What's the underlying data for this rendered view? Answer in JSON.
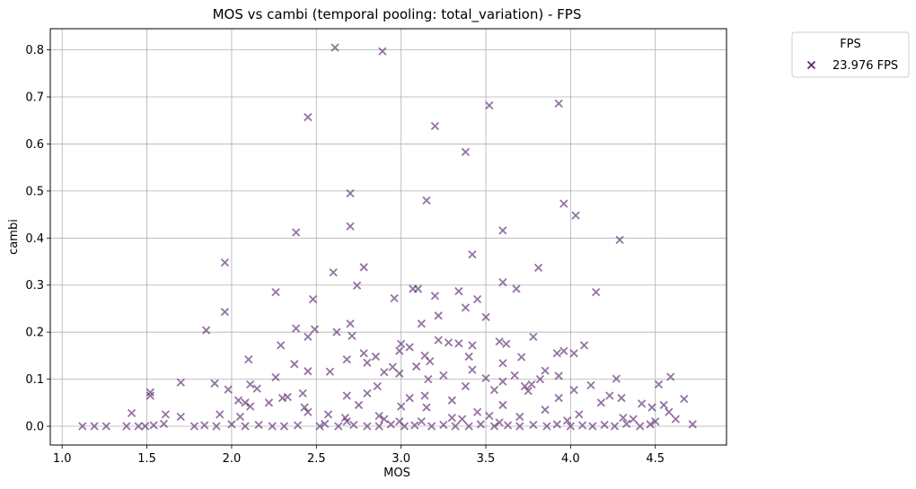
{
  "chart_data": {
    "type": "scatter",
    "title": "MOS vs cambi (temporal pooling: total_variation) - FPS",
    "xlabel": "MOS",
    "ylabel": "cambi",
    "xlim": [
      0.93,
      4.92
    ],
    "ylim": [
      -0.04,
      0.845
    ],
    "xticks": [
      "1.0",
      "1.5",
      "2.0",
      "2.5",
      "3.0",
      "3.5",
      "4.0",
      "4.5"
    ],
    "yticks": [
      "0.0",
      "0.1",
      "0.2",
      "0.3",
      "0.4",
      "0.5",
      "0.6",
      "0.7",
      "0.8"
    ],
    "grid": true,
    "legend": {
      "title": "FPS",
      "placement": "outside-top-right"
    },
    "marker_color": "#5b2a6e",
    "series": [
      {
        "name": "23.976 FPS",
        "points": [
          [
            2.61,
            0.805
          ],
          [
            2.89,
            0.797
          ],
          [
            3.93,
            0.686
          ],
          [
            3.52,
            0.682
          ],
          [
            2.45,
            0.657
          ],
          [
            3.2,
            0.638
          ],
          [
            3.38,
            0.583
          ],
          [
            2.7,
            0.495
          ],
          [
            3.15,
            0.48
          ],
          [
            3.96,
            0.473
          ],
          [
            4.03,
            0.448
          ],
          [
            2.7,
            0.425
          ],
          [
            3.6,
            0.416
          ],
          [
            2.38,
            0.412
          ],
          [
            4.29,
            0.396
          ],
          [
            3.42,
            0.365
          ],
          [
            1.96,
            0.348
          ],
          [
            2.78,
            0.338
          ],
          [
            3.81,
            0.337
          ],
          [
            2.6,
            0.327
          ],
          [
            3.6,
            0.306
          ],
          [
            2.74,
            0.299
          ],
          [
            3.07,
            0.292
          ],
          [
            3.1,
            0.292
          ],
          [
            3.68,
            0.292
          ],
          [
            3.34,
            0.287
          ],
          [
            2.26,
            0.285
          ],
          [
            4.15,
            0.285
          ],
          [
            3.2,
            0.277
          ],
          [
            2.96,
            0.272
          ],
          [
            3.45,
            0.27
          ],
          [
            2.48,
            0.27
          ],
          [
            3.38,
            0.252
          ],
          [
            1.96,
            0.243
          ],
          [
            3.22,
            0.235
          ],
          [
            3.5,
            0.232
          ],
          [
            2.7,
            0.218
          ],
          [
            3.12,
            0.218
          ],
          [
            2.38,
            0.208
          ],
          [
            2.49,
            0.206
          ],
          [
            1.85,
            0.204
          ],
          [
            2.62,
            0.2
          ],
          [
            2.71,
            0.192
          ],
          [
            2.45,
            0.19
          ],
          [
            3.78,
            0.19
          ],
          [
            3.22,
            0.183
          ],
          [
            3.58,
            0.18
          ],
          [
            3.28,
            0.178
          ],
          [
            3.34,
            0.176
          ],
          [
            3.0,
            0.175
          ],
          [
            3.62,
            0.175
          ],
          [
            2.29,
            0.172
          ],
          [
            3.42,
            0.172
          ],
          [
            4.08,
            0.172
          ],
          [
            3.05,
            0.168
          ],
          [
            3.96,
            0.16
          ],
          [
            2.99,
            0.16
          ],
          [
            3.92,
            0.155
          ],
          [
            2.78,
            0.155
          ],
          [
            4.02,
            0.155
          ],
          [
            3.14,
            0.15
          ],
          [
            2.85,
            0.148
          ],
          [
            3.4,
            0.148
          ],
          [
            3.71,
            0.147
          ],
          [
            2.68,
            0.142
          ],
          [
            2.1,
            0.142
          ],
          [
            3.17,
            0.138
          ],
          [
            2.8,
            0.135
          ],
          [
            3.6,
            0.134
          ],
          [
            2.37,
            0.132
          ],
          [
            3.09,
            0.127
          ],
          [
            2.95,
            0.126
          ],
          [
            3.42,
            0.12
          ],
          [
            3.85,
            0.118
          ],
          [
            2.45,
            0.117
          ],
          [
            2.58,
            0.116
          ],
          [
            2.9,
            0.115
          ],
          [
            2.99,
            0.112
          ],
          [
            3.25,
            0.108
          ],
          [
            3.67,
            0.108
          ],
          [
            3.93,
            0.107
          ],
          [
            4.59,
            0.105
          ],
          [
            3.5,
            0.102
          ],
          [
            2.26,
            0.104
          ],
          [
            4.27,
            0.101
          ],
          [
            3.16,
            0.1
          ],
          [
            3.82,
            0.1
          ],
          [
            3.6,
            0.095
          ],
          [
            1.7,
            0.093
          ],
          [
            1.9,
            0.091
          ],
          [
            3.77,
            0.089
          ],
          [
            2.11,
            0.089
          ],
          [
            4.52,
            0.089
          ],
          [
            4.12,
            0.087
          ],
          [
            3.73,
            0.085
          ],
          [
            3.38,
            0.085
          ],
          [
            2.86,
            0.085
          ],
          [
            2.15,
            0.08
          ],
          [
            1.98,
            0.078
          ],
          [
            3.55,
            0.077
          ],
          [
            4.02,
            0.077
          ],
          [
            4.3,
            0.06
          ],
          [
            1.52,
            0.072
          ],
          [
            2.42,
            0.07
          ],
          [
            2.68,
            0.065
          ],
          [
            4.42,
            0.048
          ],
          [
            3.14,
            0.065
          ],
          [
            2.33,
            0.062
          ],
          [
            4.23,
            0.065
          ],
          [
            1.52,
            0.065
          ],
          [
            3.93,
            0.06
          ],
          [
            2.3,
            0.06
          ],
          [
            4.67,
            0.058
          ],
          [
            2.04,
            0.055
          ],
          [
            2.08,
            0.05
          ],
          [
            2.22,
            0.05
          ],
          [
            4.55,
            0.045
          ],
          [
            3.6,
            0.045
          ],
          [
            2.11,
            0.042
          ],
          [
            4.48,
            0.04
          ],
          [
            2.43,
            0.04
          ],
          [
            1.61,
            0.025
          ],
          [
            1.41,
            0.028
          ],
          [
            3.0,
            0.042
          ],
          [
            2.45,
            0.03
          ],
          [
            1.93,
            0.025
          ],
          [
            4.37,
            0.015
          ],
          [
            4.58,
            0.03
          ],
          [
            2.57,
            0.025
          ],
          [
            3.52,
            0.022
          ],
          [
            2.87,
            0.022
          ],
          [
            2.05,
            0.02
          ],
          [
            1.7,
            0.02
          ],
          [
            2.67,
            0.018
          ],
          [
            4.62,
            0.015
          ],
          [
            4.31,
            0.018
          ],
          [
            3.36,
            0.015
          ],
          [
            4.5,
            0.01
          ],
          [
            2.99,
            0.01
          ],
          [
            1.12,
            0.0
          ],
          [
            1.19,
            0.0
          ],
          [
            1.26,
            0.0
          ],
          [
            1.38,
            0.0
          ],
          [
            1.45,
            0.0
          ],
          [
            1.49,
            0.0
          ],
          [
            1.54,
            0.002
          ],
          [
            1.6,
            0.005
          ],
          [
            1.78,
            0.0
          ],
          [
            1.84,
            0.002
          ],
          [
            1.91,
            0.0
          ],
          [
            2.0,
            0.004
          ],
          [
            2.08,
            0.0
          ],
          [
            2.16,
            0.003
          ],
          [
            2.24,
            0.0
          ],
          [
            2.31,
            0.0
          ],
          [
            2.39,
            0.002
          ],
          [
            2.52,
            0.0
          ],
          [
            2.55,
            0.005
          ],
          [
            2.63,
            0.0
          ],
          [
            2.72,
            0.003
          ],
          [
            2.8,
            0.0
          ],
          [
            2.87,
            0.0
          ],
          [
            2.94,
            0.004
          ],
          [
            3.02,
            0.0
          ],
          [
            3.08,
            0.002
          ],
          [
            3.18,
            0.0
          ],
          [
            3.25,
            0.003
          ],
          [
            3.32,
            0.0
          ],
          [
            3.4,
            0.0
          ],
          [
            3.47,
            0.004
          ],
          [
            3.55,
            0.0
          ],
          [
            3.63,
            0.002
          ],
          [
            3.7,
            0.0
          ],
          [
            3.78,
            0.003
          ],
          [
            3.86,
            0.0
          ],
          [
            3.92,
            0.004
          ],
          [
            4.0,
            0.0
          ],
          [
            4.07,
            0.002
          ],
          [
            4.13,
            0.0
          ],
          [
            4.2,
            0.003
          ],
          [
            4.26,
            0.0
          ],
          [
            4.33,
            0.005
          ],
          [
            4.41,
            0.0
          ],
          [
            4.47,
            0.004
          ],
          [
            4.72,
            0.004
          ],
          [
            2.68,
            0.01
          ],
          [
            3.12,
            0.01
          ],
          [
            3.58,
            0.008
          ],
          [
            3.98,
            0.012
          ],
          [
            2.9,
            0.015
          ],
          [
            3.3,
            0.018
          ],
          [
            3.7,
            0.02
          ],
          [
            4.05,
            0.025
          ],
          [
            3.45,
            0.03
          ],
          [
            3.85,
            0.035
          ],
          [
            3.15,
            0.04
          ],
          [
            2.75,
            0.045
          ],
          [
            4.18,
            0.05
          ],
          [
            3.3,
            0.055
          ],
          [
            3.05,
            0.06
          ],
          [
            2.8,
            0.07
          ],
          [
            3.75,
            0.075
          ]
        ]
      }
    ]
  }
}
